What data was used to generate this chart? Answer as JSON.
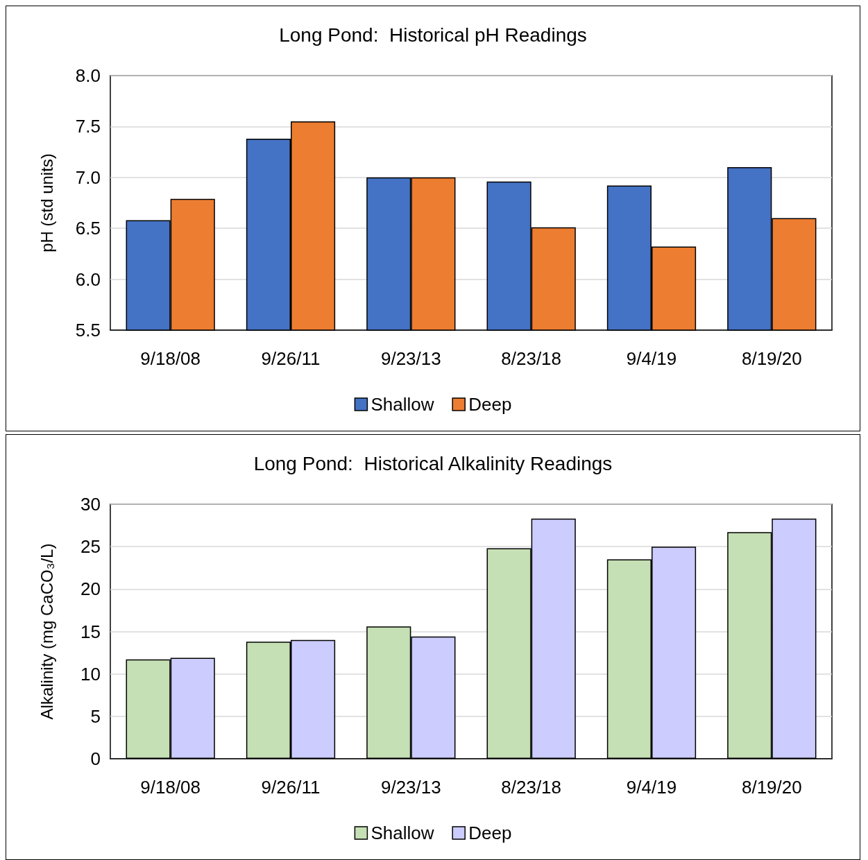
{
  "chart_data": [
    {
      "type": "bar",
      "title": "Long Pond:  Historical pH Readings",
      "ylabel": "pH (std units)",
      "categories": [
        "9/18/08",
        "9/26/11",
        "9/23/13",
        "8/23/18",
        "9/4/19",
        "8/19/20"
      ],
      "series": [
        {
          "name": "Shallow",
          "color": "#4472c4",
          "values": [
            6.58,
            7.38,
            7.0,
            6.96,
            6.92,
            7.1
          ]
        },
        {
          "name": "Deep",
          "color": "#ed7d31",
          "values": [
            6.79,
            7.55,
            7.0,
            6.51,
            6.32,
            6.6
          ]
        }
      ],
      "ylim": [
        5.5,
        8
      ],
      "yticks": [
        {
          "value": 5.5,
          "label": "5.5"
        },
        {
          "value": 6,
          "label": "6.0"
        },
        {
          "value": 6.5,
          "label": "6.5"
        },
        {
          "value": 7,
          "label": "7.0"
        },
        {
          "value": 7.5,
          "label": "7.5"
        },
        {
          "value": 8,
          "label": "8.0"
        }
      ],
      "grid": "y",
      "legend": "bottom"
    },
    {
      "type": "bar",
      "title": "Long Pond:  Historical Alkalinity Readings",
      "ylabel": "Alkalinity (mg CaCO₃/L)",
      "categories": [
        "9/18/08",
        "9/26/11",
        "9/23/13",
        "8/23/18",
        "9/4/19",
        "8/19/20"
      ],
      "series": [
        {
          "name": "Shallow",
          "color": "#c5e0b4",
          "values": [
            11.7,
            13.8,
            15.6,
            24.8,
            23.5,
            26.7
          ]
        },
        {
          "name": "Deep",
          "color": "#ccccff",
          "values": [
            11.9,
            14.0,
            14.4,
            28.3,
            25.0,
            28.3
          ]
        }
      ],
      "ylim": [
        0,
        30
      ],
      "yticks": [
        0,
        5,
        10,
        15,
        20,
        25,
        30
      ],
      "grid": "y",
      "legend": "bottom"
    }
  ]
}
